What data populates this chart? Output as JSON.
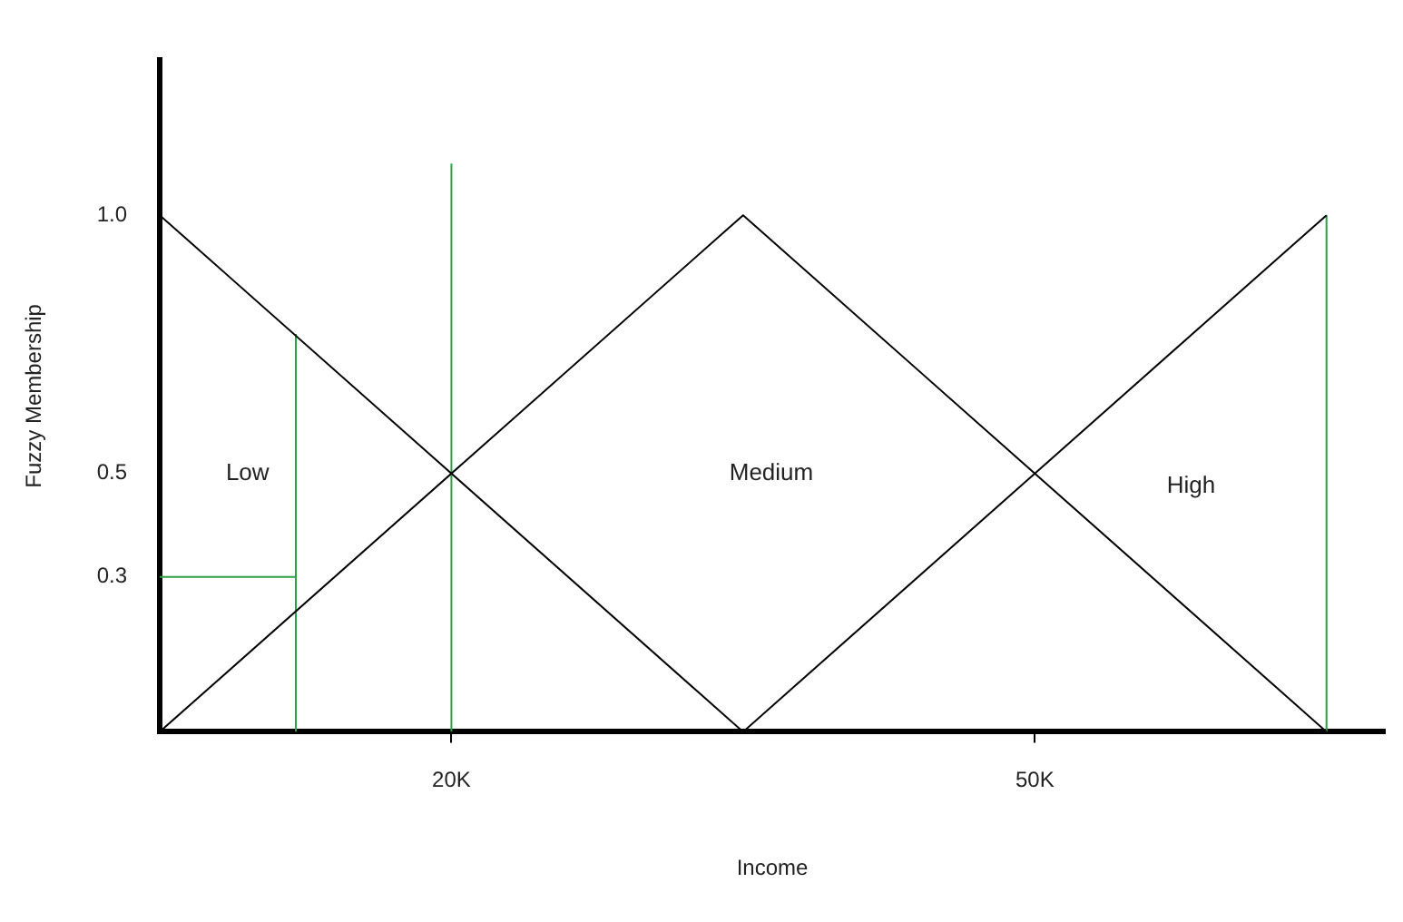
{
  "chart_data": {
    "type": "line",
    "xlabel": "Income",
    "ylabel": "Fuzzy Membership",
    "xlim": [
      5,
      68
    ],
    "ylim": [
      0,
      1.3
    ],
    "xticks": [
      {
        "value": 20,
        "label": "20K"
      },
      {
        "value": 50,
        "label": "50K"
      }
    ],
    "yticks": [
      0.3,
      0.5,
      {
        "value": 1,
        "label": "1.0"
      }
    ],
    "grid": false,
    "legend": false,
    "marker": "none",
    "line_style": "solid",
    "series": [
      {
        "color": "#000000",
        "x": [
          5,
          35
        ],
        "values": [
          1,
          0
        ]
      },
      {
        "color": "#000000",
        "x": [
          5,
          35,
          65
        ],
        "values": [
          0,
          1,
          0
        ]
      },
      {
        "color": "#000000",
        "x": [
          35,
          65
        ],
        "values": [
          0,
          1
        ]
      },
      {
        "color": "#2e9e4a",
        "x": [
          12,
          12
        ],
        "values": [
          0,
          0.77
        ]
      },
      {
        "color": "#2e9e4a",
        "x": [
          5,
          12
        ],
        "values": [
          0.3,
          0.3
        ]
      },
      {
        "color": "#2e9e4a",
        "x": [
          20,
          20
        ],
        "values": [
          0,
          1.1
        ]
      },
      {
        "color": "#2e9e4a",
        "x": [
          65,
          65
        ],
        "values": [
          0,
          1
        ]
      }
    ],
    "annotations": [
      "Low",
      "Medium",
      "High"
    ]
  }
}
